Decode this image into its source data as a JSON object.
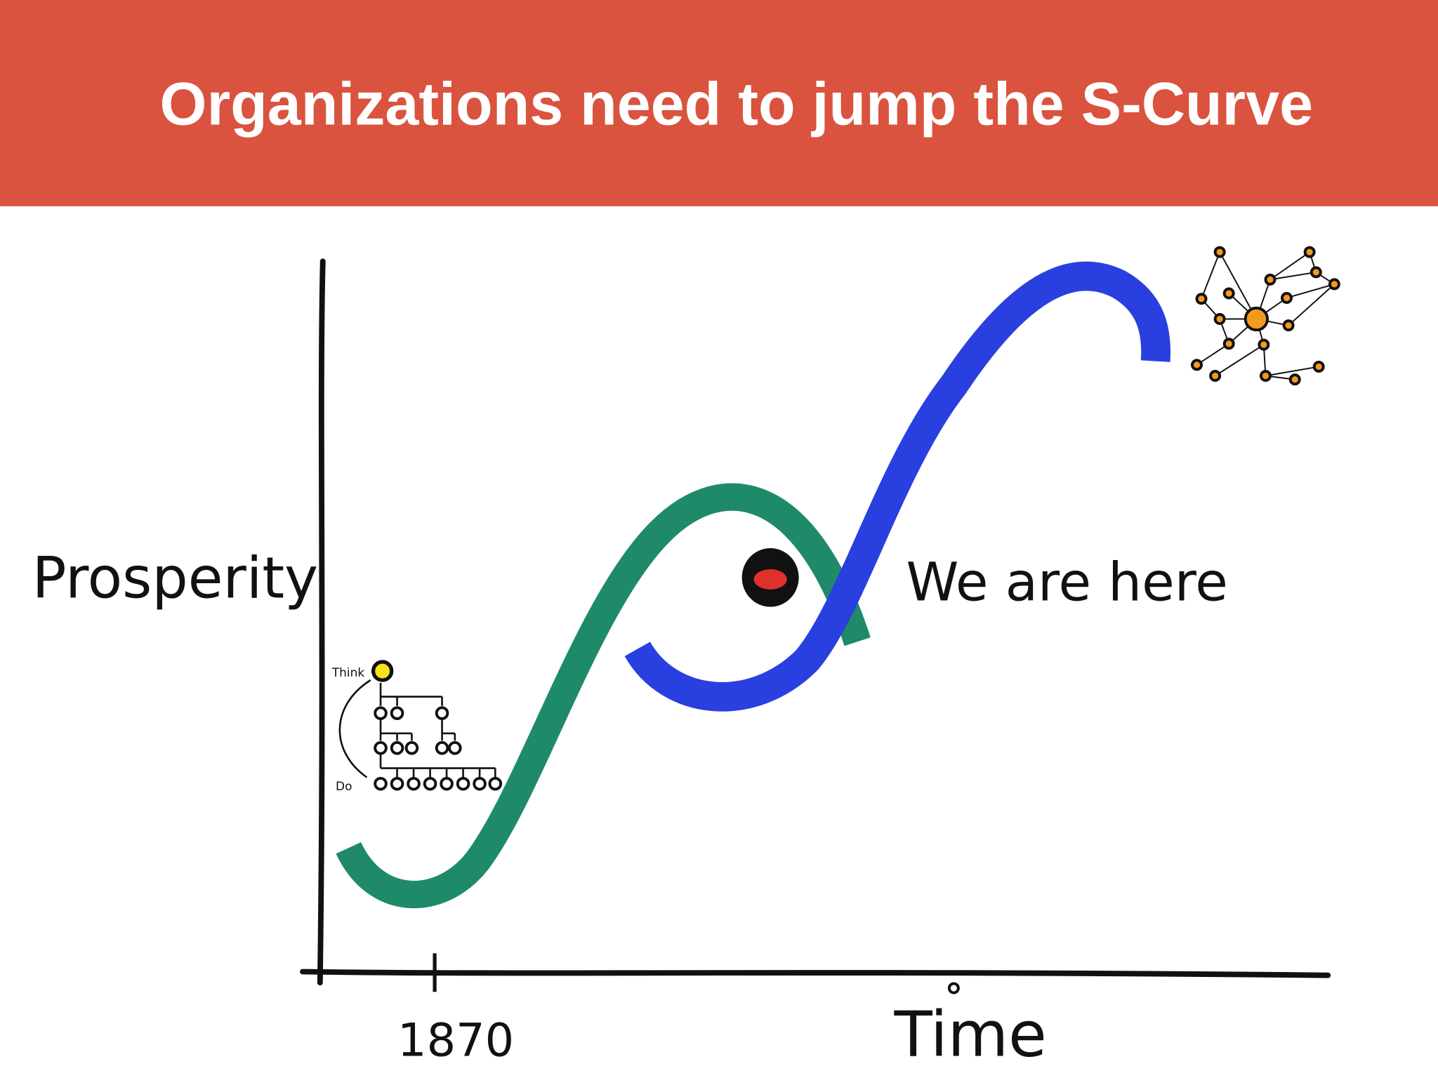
{
  "header": {
    "title": "Organizations need to jump the S-Curve"
  },
  "axes": {
    "y_label": "Prosperity",
    "x_label": "Time",
    "x_tick": "1870"
  },
  "annotation": "We are here",
  "org_chart": {
    "top_label": "Think",
    "bottom_label": "Do"
  }
}
